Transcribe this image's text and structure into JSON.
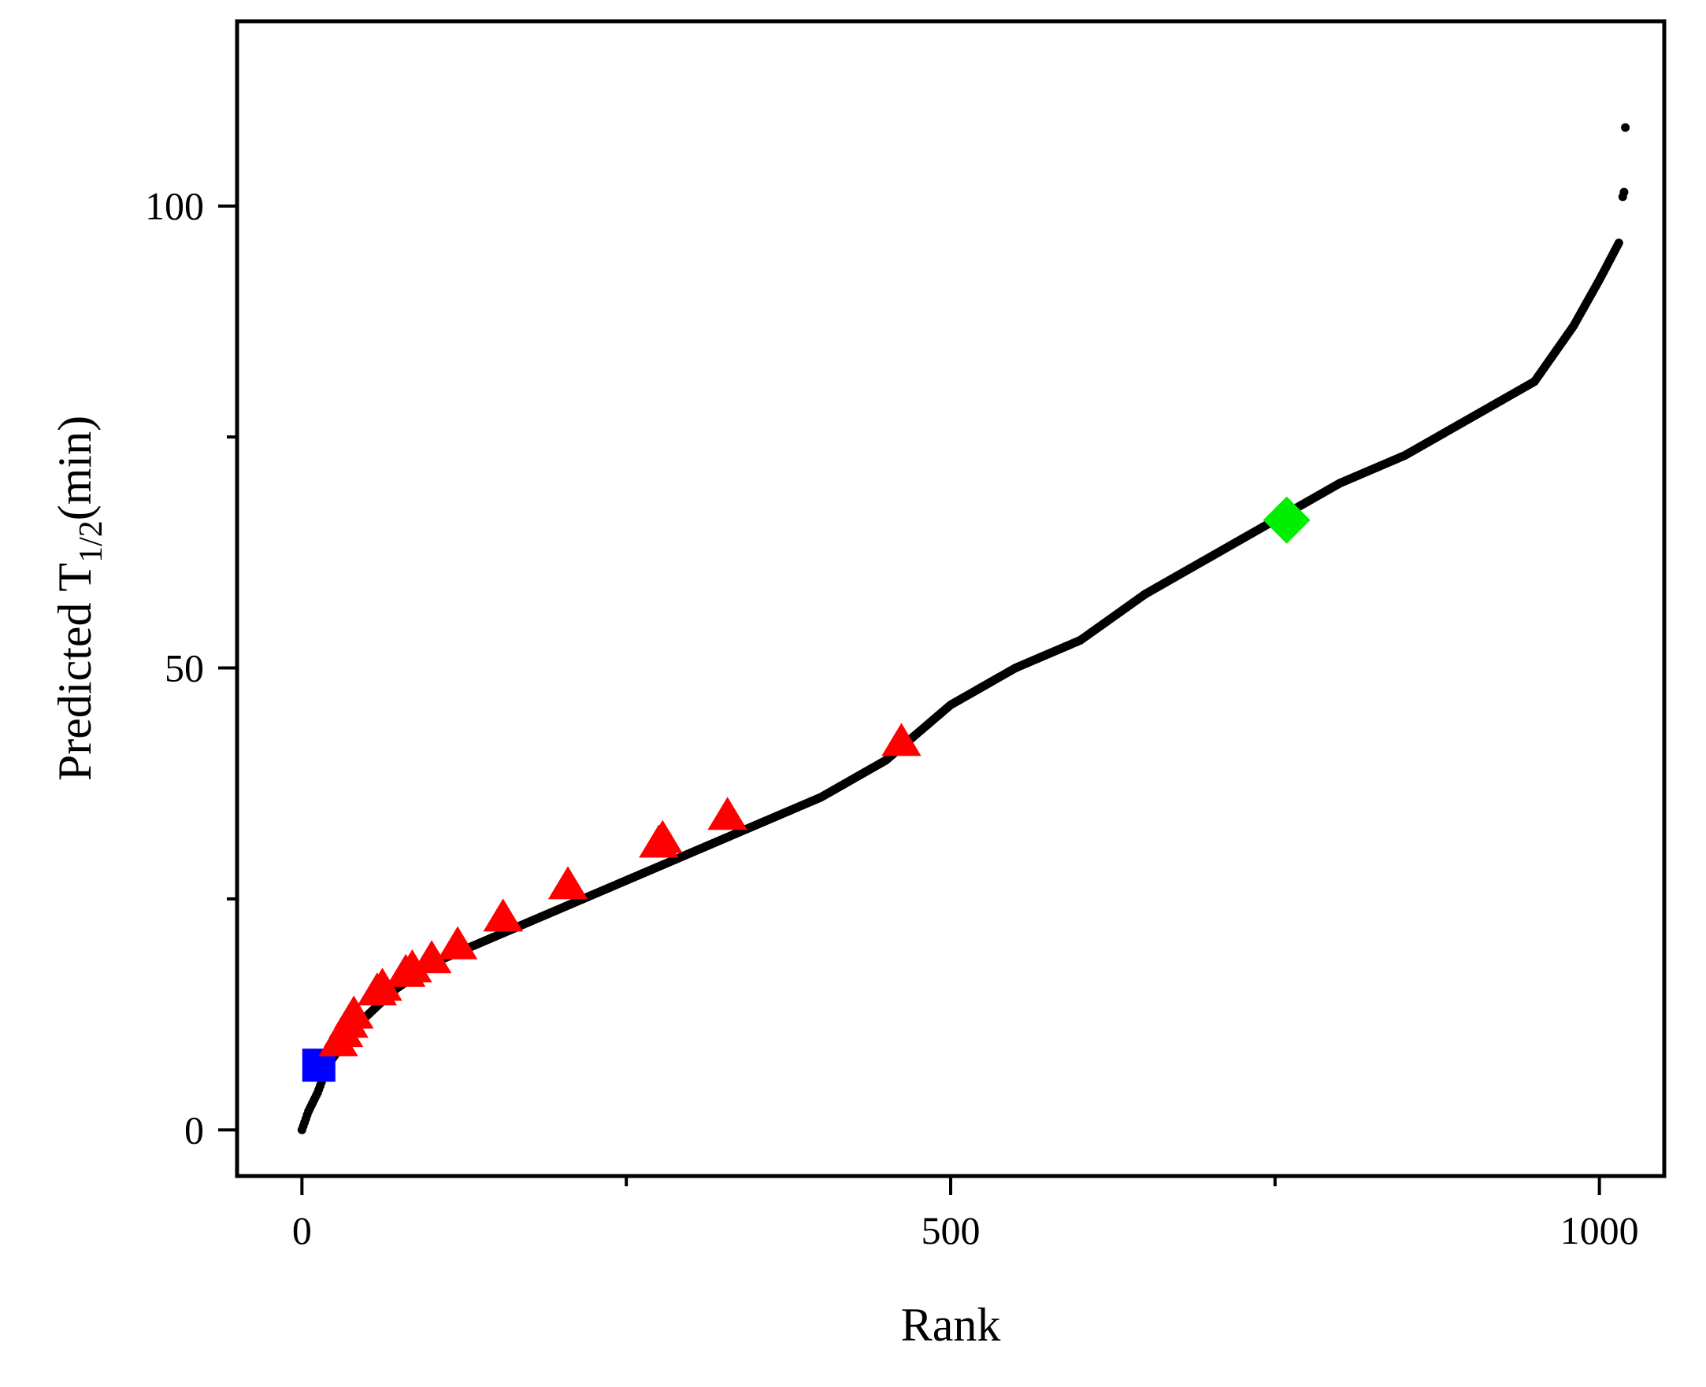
{
  "chart_data": {
    "type": "scatter",
    "xlabel": "Rank",
    "ylabel": {
      "main": "Predicted  T",
      "subscript": "1/2",
      "suffix": "(min)"
    },
    "xlim": [
      -50,
      1050
    ],
    "ylim": [
      -5,
      120
    ],
    "x_ticks": [
      0,
      500,
      1000
    ],
    "x_minor_ticks": [
      250,
      750
    ],
    "y_ticks": [
      0,
      50,
      100
    ],
    "y_minor_ticks": [
      25,
      75
    ],
    "grid": false,
    "series": [
      {
        "marker": "circle",
        "color": "#000000",
        "curve_knots": [
          [
            0,
            0
          ],
          [
            5,
            2
          ],
          [
            12,
            4
          ],
          [
            20,
            7
          ],
          [
            40,
            11
          ],
          [
            70,
            15
          ],
          [
            100,
            18
          ],
          [
            150,
            21
          ],
          [
            200,
            24
          ],
          [
            250,
            27
          ],
          [
            300,
            30
          ],
          [
            350,
            33
          ],
          [
            400,
            36
          ],
          [
            450,
            40
          ],
          [
            500,
            46
          ],
          [
            550,
            50
          ],
          [
            600,
            53
          ],
          [
            650,
            58
          ],
          [
            700,
            62
          ],
          [
            750,
            66
          ],
          [
            800,
            70
          ],
          [
            850,
            73
          ],
          [
            900,
            77
          ],
          [
            950,
            81
          ],
          [
            980,
            87
          ],
          [
            1000,
            92
          ],
          [
            1015,
            96
          ]
        ],
        "count": 1020,
        "outliers": [
          [
            1018,
            101
          ],
          [
            1019,
            101.5
          ],
          [
            1020,
            108.5
          ]
        ]
      },
      {
        "marker": "square",
        "color": "#0000ff",
        "points": [
          [
            13,
            7
          ]
        ]
      },
      {
        "marker": "triangle",
        "color": "#ff0000",
        "points": [
          [
            28,
            9.5
          ],
          [
            32,
            10.5
          ],
          [
            36,
            11.5
          ],
          [
            40,
            12.5
          ],
          [
            58,
            15
          ],
          [
            62,
            15.5
          ],
          [
            80,
            17
          ],
          [
            85,
            17.5
          ],
          [
            100,
            18.5
          ],
          [
            120,
            20
          ],
          [
            155,
            23
          ],
          [
            205,
            26.5
          ],
          [
            275,
            31
          ],
          [
            278,
            31.5
          ],
          [
            328,
            34
          ],
          [
            462,
            42
          ]
        ]
      },
      {
        "marker": "diamond",
        "color": "#00ee00",
        "points": [
          [
            759,
            66
          ]
        ]
      }
    ]
  }
}
